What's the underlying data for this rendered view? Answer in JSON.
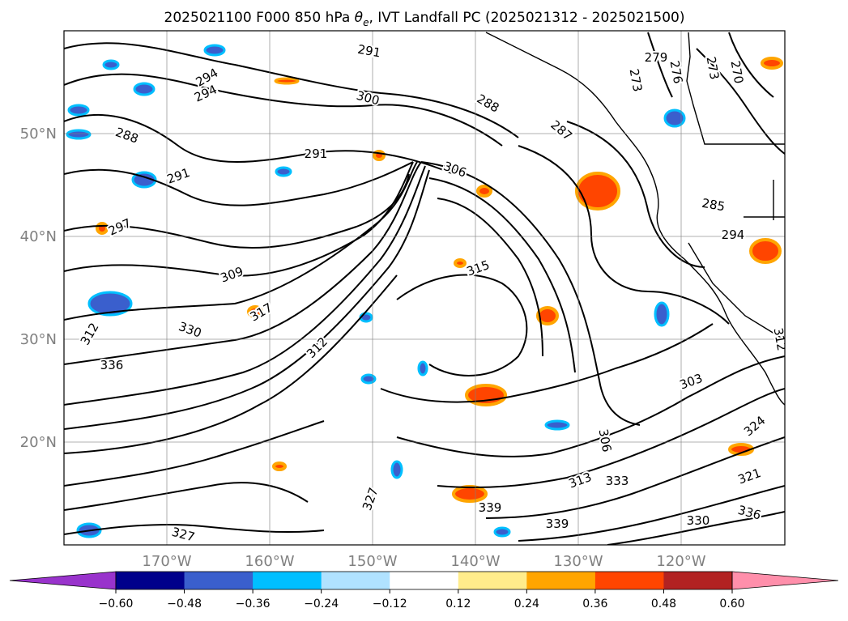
{
  "figure": {
    "title_prefix": "2025021100 F000 850 hPa ",
    "title_symbol": "θ",
    "title_subscript": "e",
    "title_suffix": ", IVT Landfall PC (2025021312 - 2025021500)"
  },
  "map": {
    "lat_labels": [
      {
        "value": 50,
        "text": "50°N"
      },
      {
        "value": 40,
        "text": "40°N"
      },
      {
        "value": 30,
        "text": "30°N"
      },
      {
        "value": 20,
        "text": "20°N"
      }
    ],
    "lon_labels": [
      {
        "value": -170,
        "text": "170°W"
      },
      {
        "value": -160,
        "text": "160°W"
      },
      {
        "value": -150,
        "text": "150°W"
      },
      {
        "value": -140,
        "text": "140°W"
      },
      {
        "value": -130,
        "text": "130°W"
      },
      {
        "value": -120,
        "text": "120°W"
      }
    ],
    "contour_field": "850 hPa θe",
    "contour_labels": [
      "279",
      "273",
      "276",
      "273",
      "270",
      "291",
      "294",
      "294",
      "300",
      "288",
      "291",
      "288",
      "287",
      "306",
      "291",
      "297",
      "285",
      "294",
      "309",
      "315",
      "312",
      "317",
      "330",
      "303",
      "312",
      "336",
      "312",
      "306",
      "313",
      "333",
      "339",
      "336",
      "339",
      "324",
      "321",
      "327",
      "330",
      "327"
    ],
    "colors": {
      "contour": "#000000",
      "grid": "#808080",
      "land_border": "#000000"
    }
  },
  "colorbar": {
    "ticks": [
      "−0.60",
      "−0.48",
      "−0.36",
      "−0.24",
      "−0.12",
      "0.12",
      "0.24",
      "0.36",
      "0.48",
      "0.60"
    ],
    "colors": [
      "#9933cc",
      "#00008b",
      "#3a5fcd",
      "#00bfff",
      "#b0e2ff",
      "#ffffff",
      "#ffec8b",
      "#ffa500",
      "#ff4500",
      "#b22222",
      "#ff8fab"
    ]
  },
  "chart_data": {
    "type": "heatmap",
    "variable_contours": "850 hPa θe",
    "variable_shading": "IVT Landfall PC",
    "lat_range": [
      10,
      60
    ],
    "lon_range": [
      -180,
      -110
    ],
    "colorbar_levels": [
      -0.6,
      -0.48,
      -0.36,
      -0.24,
      -0.12,
      0.12,
      0.24,
      0.36,
      0.48,
      0.6
    ]
  }
}
